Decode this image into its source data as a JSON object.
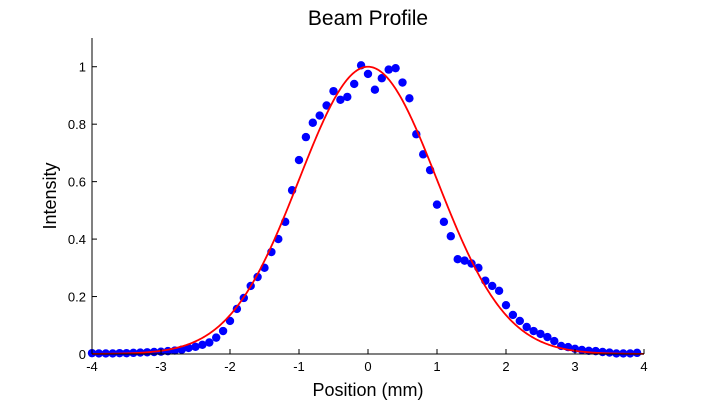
{
  "chart_data": {
    "type": "scatter",
    "title": "Beam Profile",
    "xlabel": "Position (mm)",
    "ylabel": "Intensity",
    "xlim": [
      -4,
      4
    ],
    "ylim": [
      0,
      1.1
    ],
    "grid": false,
    "x_ticks": [
      -4,
      -3,
      -2,
      -1,
      0,
      1,
      2,
      3,
      4
    ],
    "x_tick_labels": [
      "-4",
      "-3",
      "-2",
      "-1",
      "0",
      "1",
      "2",
      "3",
      "4"
    ],
    "y_ticks": [
      0,
      0.2,
      0.4,
      0.6,
      0.8,
      1
    ],
    "y_tick_labels": [
      "0",
      "0.2",
      "0.4",
      "0.6",
      "0.8",
      "1"
    ],
    "series": [
      {
        "name": "measured",
        "kind": "scatter",
        "color": "#0000ff",
        "x_start": -4.0,
        "x_step": 0.1,
        "values": [
          0.003,
          0.002,
          0.002,
          0.002,
          0.003,
          0.003,
          0.004,
          0.005,
          0.006,
          0.007,
          0.008,
          0.01,
          0.012,
          0.015,
          0.021,
          0.025,
          0.032,
          0.04,
          0.057,
          0.08,
          0.115,
          0.157,
          0.195,
          0.237,
          0.268,
          0.3,
          0.355,
          0.4,
          0.46,
          0.57,
          0.675,
          0.755,
          0.805,
          0.83,
          0.865,
          0.915,
          0.885,
          0.895,
          0.94,
          1.005,
          0.975,
          0.92,
          0.96,
          0.99,
          0.995,
          0.945,
          0.89,
          0.765,
          0.695,
          0.64,
          0.52,
          0.46,
          0.41,
          0.33,
          0.325,
          0.315,
          0.3,
          0.255,
          0.237,
          0.22,
          0.17,
          0.136,
          0.115,
          0.094,
          0.08,
          0.07,
          0.059,
          0.045,
          0.028,
          0.024,
          0.018,
          0.014,
          0.011,
          0.01,
          0.007,
          0.005,
          0.002,
          0.002,
          0.002,
          0.004
        ]
      },
      {
        "name": "gaussian-fit",
        "kind": "line",
        "color": "#ff0000",
        "amplitude": 1.0,
        "center": 0.0,
        "sigma": 1.0
      }
    ]
  }
}
